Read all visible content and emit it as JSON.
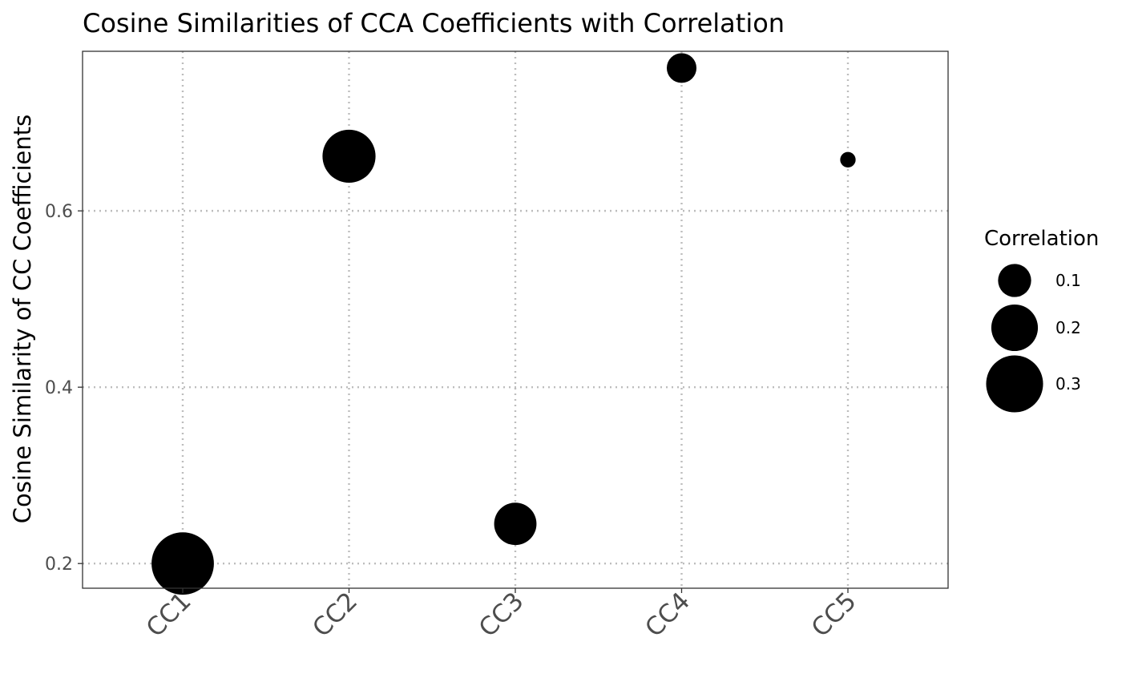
{
  "chart_data": {
    "type": "scatter",
    "title": "Cosine Similarities of CCA Coefficients with Correlation",
    "xlabel": "",
    "ylabel": "Cosine Similarity of CC Coefficients",
    "categories": [
      "CC1",
      "CC2",
      "CC3",
      "CC4",
      "CC5"
    ],
    "ylim": [
      0.172,
      0.781
    ],
    "yticks": [
      0.2,
      0.4,
      0.6
    ],
    "ytick_labels": [
      "0.2",
      "0.4",
      "0.6"
    ],
    "points": [
      {
        "x": "CC1",
        "y": 0.2,
        "correlation": 0.36
      },
      {
        "x": "CC2",
        "y": 0.662,
        "correlation": 0.26
      },
      {
        "x": "CC3",
        "y": 0.245,
        "correlation": 0.165
      },
      {
        "x": "CC4",
        "y": 0.762,
        "correlation": 0.08
      },
      {
        "x": "CC5",
        "y": 0.658,
        "correlation": 0.02
      }
    ],
    "size_legend": {
      "title": "Correlation",
      "breaks": [
        0.1,
        0.2,
        0.3
      ],
      "labels": [
        "0.1",
        "0.2",
        "0.3"
      ]
    },
    "grid": true,
    "grid_style": "dotted",
    "legend_position": "right",
    "point_color": "#000000"
  }
}
